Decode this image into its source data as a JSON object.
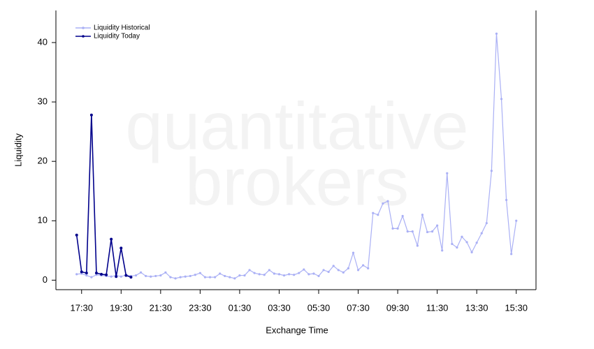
{
  "chart_data": {
    "type": "line",
    "watermark": [
      "quantitative",
      "brokers"
    ],
    "xlabel": "Exchange Time",
    "ylabel": "Liquidity",
    "legend": "top-left",
    "x": [
      17.25,
      17.5,
      17.75,
      18,
      18.25,
      18.5,
      18.75,
      19,
      19.25,
      19.5,
      19.75,
      20,
      20.25,
      20.5,
      20.75,
      21,
      21.25,
      21.5,
      21.75,
      22,
      22.25,
      22.5,
      22.75,
      23,
      23.25,
      23.5,
      23.75,
      24,
      24.25,
      24.5,
      24.75,
      25,
      25.25,
      25.5,
      25.75,
      26,
      26.25,
      26.5,
      26.75,
      27,
      27.25,
      27.5,
      27.75,
      28,
      28.25,
      28.5,
      28.75,
      29,
      29.25,
      29.5,
      29.75,
      30,
      30.25,
      30.5,
      30.75,
      31,
      31.25,
      31.5,
      31.75,
      32,
      32.25,
      32.5,
      32.75,
      33,
      33.25,
      33.5,
      33.75,
      34,
      34.25,
      34.5,
      34.75,
      35,
      35.25,
      35.5,
      35.75,
      36,
      36.25,
      36.5,
      36.75,
      37,
      37.25,
      37.5,
      37.75,
      38,
      38.25,
      38.5,
      38.75,
      39,
      39.25,
      39.5
    ],
    "series": [
      {
        "name": "Liquidity Historical",
        "color": "#aab0f5",
        "values": [
          1.0,
          1.1,
          0.8,
          0.5,
          0.9,
          0.8,
          0.7,
          0.6,
          0.8,
          0.6,
          0.9,
          0.7,
          0.8,
          1.3,
          0.7,
          0.6,
          0.7,
          0.8,
          1.3,
          0.5,
          0.3,
          0.5,
          0.6,
          0.7,
          0.9,
          1.2,
          0.5,
          0.5,
          0.5,
          1.1,
          0.7,
          0.5,
          0.3,
          0.8,
          0.8,
          1.7,
          1.2,
          1.0,
          0.9,
          1.7,
          1.1,
          1.0,
          0.8,
          1.0,
          0.9,
          1.2,
          1.8,
          1.0,
          1.1,
          0.7,
          1.7,
          1.4,
          2.4,
          1.7,
          1.3,
          2.0,
          4.6,
          1.7,
          2.5,
          2.0,
          11.3,
          11.0,
          12.9,
          13.3,
          8.7,
          8.7,
          10.8,
          8.2,
          8.2,
          5.8,
          11.0,
          8.1,
          8.2,
          9.2,
          5.0,
          18.0,
          6.1,
          5.5,
          7.3,
          6.4,
          4.7,
          6.3,
          7.9,
          9.6,
          18.4,
          41.5,
          30.5,
          13.5,
          4.4,
          10.0
        ]
      },
      {
        "name": "Liquidity Today",
        "color": "#00008b",
        "values": [
          7.6,
          1.4,
          1.2,
          27.8,
          1.2,
          1.0,
          0.9,
          6.9,
          0.6,
          5.4,
          0.8,
          0.5,
          null,
          null,
          null,
          null,
          null,
          null,
          null,
          null,
          null,
          null,
          null,
          null,
          null,
          null,
          null,
          null,
          null,
          null,
          null,
          null,
          null,
          null,
          null,
          null,
          null,
          null,
          null,
          null,
          null,
          null,
          null,
          null,
          null,
          null,
          null,
          null,
          null,
          null,
          null,
          null,
          null,
          null,
          null,
          null,
          null,
          null,
          null,
          null,
          null,
          null,
          null,
          null,
          null,
          null,
          null,
          null,
          null,
          null,
          null,
          null,
          null,
          null,
          null,
          null,
          null,
          null,
          null,
          null,
          null,
          null,
          null,
          null,
          null,
          null,
          null,
          null,
          null,
          null
        ]
      }
    ],
    "xlim": [
      16.2,
      40.5
    ],
    "xticks": [
      {
        "value": 17.5,
        "label": "17:30"
      },
      {
        "value": 19.5,
        "label": "19:30"
      },
      {
        "value": 21.5,
        "label": "21:30"
      },
      {
        "value": 23.5,
        "label": "23:30"
      },
      {
        "value": 25.5,
        "label": "01:30"
      },
      {
        "value": 27.5,
        "label": "03:30"
      },
      {
        "value": 29.5,
        "label": "05:30"
      },
      {
        "value": 31.5,
        "label": "07:30"
      },
      {
        "value": 33.5,
        "label": "09:30"
      },
      {
        "value": 35.5,
        "label": "11:30"
      },
      {
        "value": 37.5,
        "label": "13:30"
      },
      {
        "value": 39.5,
        "label": "15:30"
      }
    ],
    "ylim": [
      -1.6,
      45.4
    ],
    "yticks": [
      0,
      10,
      20,
      30,
      40
    ]
  }
}
